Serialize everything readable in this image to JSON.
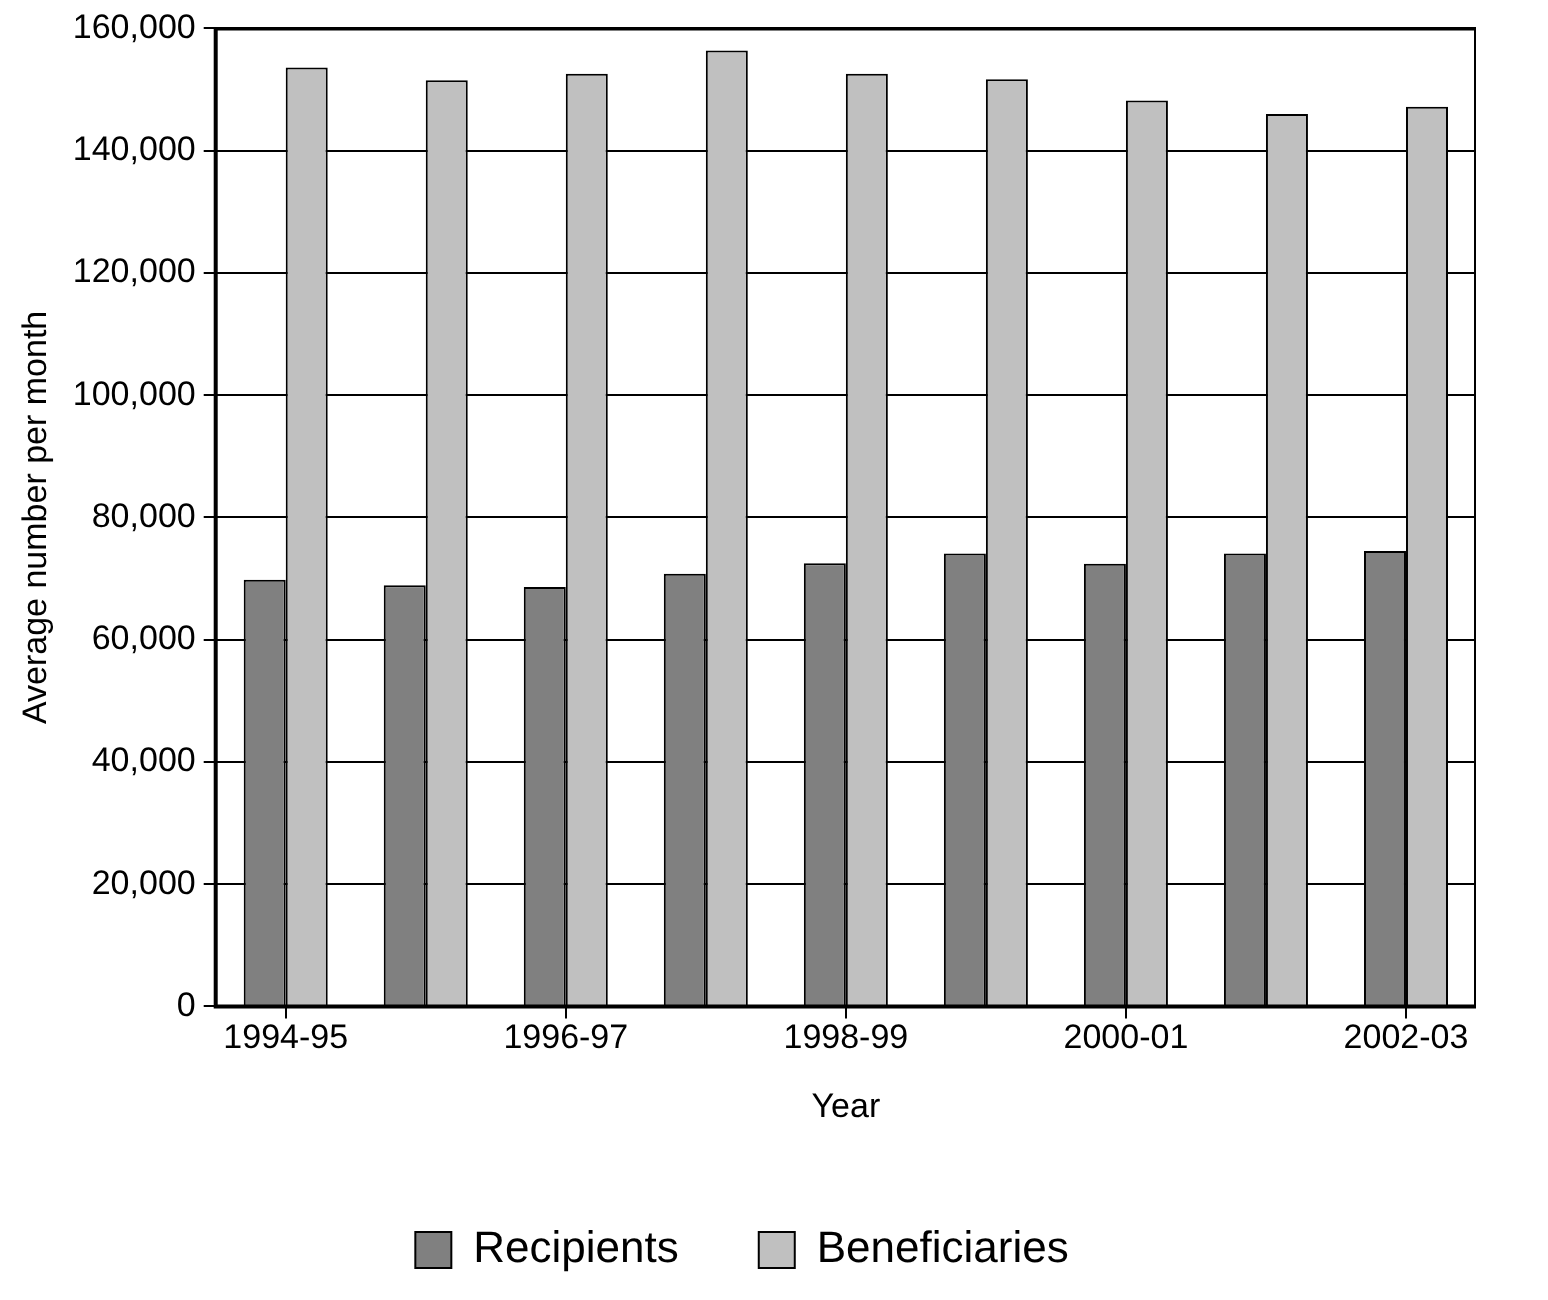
{
  "chart_data": {
    "type": "bar",
    "xlabel": "Year",
    "ylabel": "Average number per month",
    "categories": [
      "1994-95",
      null,
      "1996-97",
      null,
      "1998-99",
      null,
      "2000-01",
      null,
      "2002-03"
    ],
    "series": [
      {
        "name": "Recipients",
        "color": "#808080",
        "values": [
          69800,
          68900,
          68600,
          70800,
          72500,
          74100,
          72400,
          74100,
          74500
        ]
      },
      {
        "name": "Beneficiaries",
        "color": "#c0c0c0",
        "values": [
          153600,
          151500,
          152600,
          156400,
          152600,
          151700,
          148200,
          146000,
          147200
        ]
      }
    ],
    "ylim": [
      0,
      160000
    ],
    "yticks": [
      0,
      {
        "value": 20000,
        "label": "20,000"
      },
      {
        "value": 40000,
        "label": "40,000"
      },
      {
        "value": 60000,
        "label": "60,000"
      },
      {
        "value": 80000,
        "label": "80,000"
      },
      {
        "value": 100000,
        "label": "100,000"
      },
      {
        "value": 120000,
        "label": "120,000"
      },
      {
        "value": 140000,
        "label": "140,000"
      },
      {
        "value": 160000,
        "label": "160,000"
      }
    ],
    "grid": "y",
    "legend": "bottom"
  }
}
